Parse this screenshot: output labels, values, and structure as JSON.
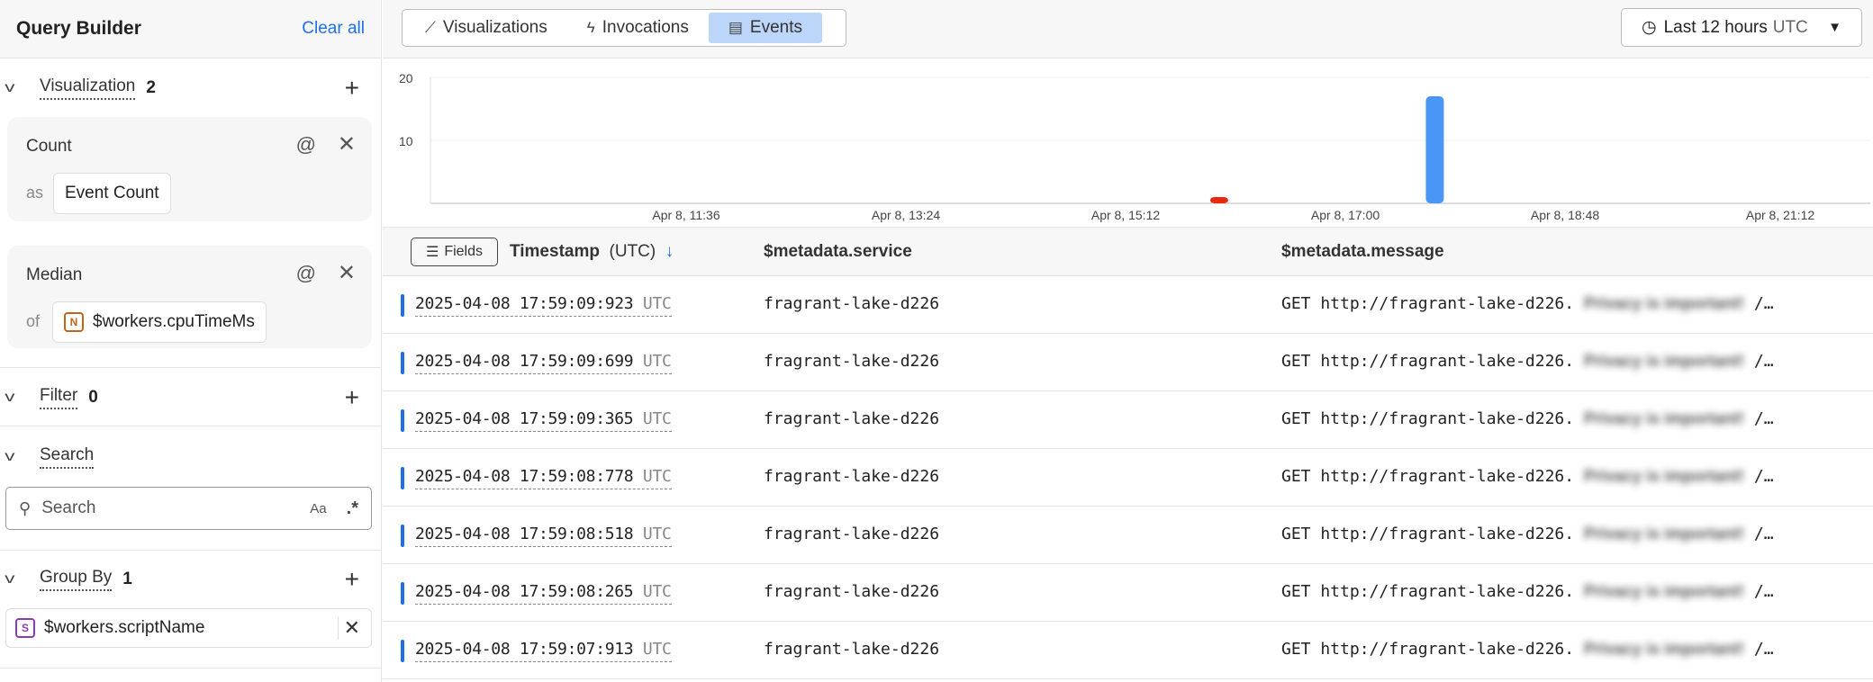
{
  "sidebar": {
    "title": "Query Builder",
    "clear_all": "Clear all",
    "visualization": {
      "label": "Visualization",
      "count": "2"
    },
    "cards": [
      {
        "title": "Count",
        "prefix": "as",
        "value": "Event Count"
      },
      {
        "title": "Median",
        "prefix": "of",
        "badge": "N",
        "value": "$workers.cpuTimeMs"
      }
    ],
    "filter": {
      "label": "Filter",
      "count": "0"
    },
    "search": {
      "label": "Search",
      "placeholder": "Search",
      "case_toggle": "Aa",
      "regex_toggle": ".*"
    },
    "group_by": {
      "label": "Group By",
      "count": "1",
      "badge": "S",
      "value": "$workers.scriptName"
    }
  },
  "tabs": [
    {
      "label": "Visualizations",
      "icon": "line-chart-icon"
    },
    {
      "label": "Invocations",
      "icon": "bolt-icon"
    },
    {
      "label": "Events",
      "icon": "events-icon",
      "active": true
    }
  ],
  "time_range": {
    "label": "Last 12 hours",
    "tz": "UTC"
  },
  "colors": {
    "accent": "#1f6fe5",
    "active_tab": "#bcd6fa",
    "bar_blue": "#4a96f7",
    "bar_red": "#e62a10",
    "badge_number": "#c0651b",
    "badge_string": "#8e3bb8"
  },
  "chart_data": {
    "type": "bar",
    "y_ticks": [
      "10",
      "20"
    ],
    "ylim": [
      0,
      20
    ],
    "grid": true,
    "x_ticks": [
      "Apr 8, 11:36",
      "Apr 8, 13:24",
      "Apr 8, 15:12",
      "Apr 8, 17:00",
      "Apr 8, 18:48",
      "Apr 8, 21:12"
    ],
    "bars": [
      {
        "time": "15:58",
        "value": 1,
        "color": "#e62a10"
      },
      {
        "time": "17:44",
        "value": 17,
        "color": "#4a96f7"
      }
    ]
  },
  "table": {
    "fields_button": "Fields",
    "columns": {
      "timestamp": "Timestamp",
      "timestamp_tz": "(UTC)",
      "service": "$metadata.service",
      "message": "$metadata.message"
    },
    "rows": [
      {
        "ts": "2025-04-08 17:59:09:923",
        "tz": "UTC",
        "service": "fragrant-lake-d226",
        "msg": "GET http://fragrant-lake-d226.",
        "redacted": "Privacy is important!",
        "tail": "/…"
      },
      {
        "ts": "2025-04-08 17:59:09:699",
        "tz": "UTC",
        "service": "fragrant-lake-d226",
        "msg": "GET http://fragrant-lake-d226.",
        "redacted": "Privacy is important!",
        "tail": "/…"
      },
      {
        "ts": "2025-04-08 17:59:09:365",
        "tz": "UTC",
        "service": "fragrant-lake-d226",
        "msg": "GET http://fragrant-lake-d226.",
        "redacted": "Privacy is important!",
        "tail": "/…"
      },
      {
        "ts": "2025-04-08 17:59:08:778",
        "tz": "UTC",
        "service": "fragrant-lake-d226",
        "msg": "GET http://fragrant-lake-d226.",
        "redacted": "Privacy is important!",
        "tail": "/…"
      },
      {
        "ts": "2025-04-08 17:59:08:518",
        "tz": "UTC",
        "service": "fragrant-lake-d226",
        "msg": "GET http://fragrant-lake-d226.",
        "redacted": "Privacy is important!",
        "tail": "/…"
      },
      {
        "ts": "2025-04-08 17:59:08:265",
        "tz": "UTC",
        "service": "fragrant-lake-d226",
        "msg": "GET http://fragrant-lake-d226.",
        "redacted": "Privacy is important!",
        "tail": "/…"
      },
      {
        "ts": "2025-04-08 17:59:07:913",
        "tz": "UTC",
        "service": "fragrant-lake-d226",
        "msg": "GET http://fragrant-lake-d226.",
        "redacted": "Privacy is important!",
        "tail": "/…"
      }
    ]
  }
}
